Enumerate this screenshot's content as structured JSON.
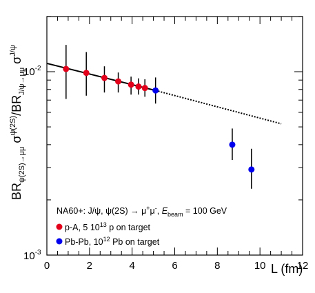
{
  "chart_data": {
    "type": "scatter",
    "xlabel": "L (fm)",
    "ylabel": "BR_{ψ(2S)→μμ} σ^{ψ(2S)}/BR_{J/ψ→μμ} σ^{J/ψ}",
    "ylabel_parts": {
      "br1": "BR",
      "br1_sub": "ψ(2S)→μμ",
      "sigma1": " σ",
      "sigma1_sup": "ψ(2S)",
      "slash": "/BR",
      "br2_sub": "J/ψ→μμ",
      "sigma2": " σ",
      "sigma2_sup": "J/ψ"
    },
    "xlim": [
      0,
      12
    ],
    "ylim": [
      0.001,
      0.02
    ],
    "yscale": "log",
    "x_ticks": [
      "0",
      "2",
      "4",
      "6",
      "8",
      "10",
      "12"
    ],
    "y_tick_labels": {
      "e2": {
        "base": "10",
        "exp": "-2"
      },
      "e3": {
        "base": "10",
        "exp": "-3"
      }
    },
    "legend_position": "bottom-left",
    "legend": {
      "header": {
        "t1": "NA60+: J/ψ, ψ(2S) → μ",
        "sup1": "+",
        "t2": "μ",
        "sup2": "-",
        "t3": ", ",
        "e": "E",
        "e_sub": "beam",
        "t4": " = 100 GeV"
      },
      "entries": [
        {
          "pre": "p-A, 5 10",
          "sup": "13",
          "post": " p on target",
          "color": "#e3001b"
        },
        {
          "pre": "Pb-Pb, 10",
          "sup": "12",
          "post": " Pb on target",
          "color": "#0000ee"
        }
      ]
    },
    "series": [
      {
        "color": "#e3001b",
        "points": [
          {
            "x": 0.9,
            "y": 0.01035,
            "ylo": 0.0071,
            "yhi": 0.014
          },
          {
            "x": 1.85,
            "y": 0.00985,
            "ylo": 0.0074,
            "yhi": 0.0128
          },
          {
            "x": 2.7,
            "y": 0.00925,
            "ylo": 0.0077,
            "yhi": 0.0107
          },
          {
            "x": 3.35,
            "y": 0.00885,
            "ylo": 0.0077,
            "yhi": 0.0099
          },
          {
            "x": 3.95,
            "y": 0.0085,
            "ylo": 0.0075,
            "yhi": 0.0094
          },
          {
            "x": 4.3,
            "y": 0.0083,
            "ylo": 0.0075,
            "yhi": 0.0092
          },
          {
            "x": 4.6,
            "y": 0.00815,
            "ylo": 0.0073,
            "yhi": 0.0091
          }
        ]
      },
      {
        "color": "#0000ee",
        "points": [
          {
            "x": 5.1,
            "y": 0.0079,
            "ylo": 0.0067,
            "yhi": 0.0093
          },
          {
            "x": 8.7,
            "y": 0.004,
            "ylo": 0.0033,
            "yhi": 0.0049
          },
          {
            "x": 9.6,
            "y": 0.00293,
            "ylo": 0.0023,
            "yhi": 0.0038
          }
        ]
      }
    ],
    "fit_solid": {
      "x": [
        0,
        5.1
      ],
      "y": [
        0.0111,
        0.0079
      ]
    },
    "fit_dashed": {
      "x": [
        5.1,
        11.0
      ],
      "y": [
        0.0079,
        0.0052
      ]
    }
  }
}
